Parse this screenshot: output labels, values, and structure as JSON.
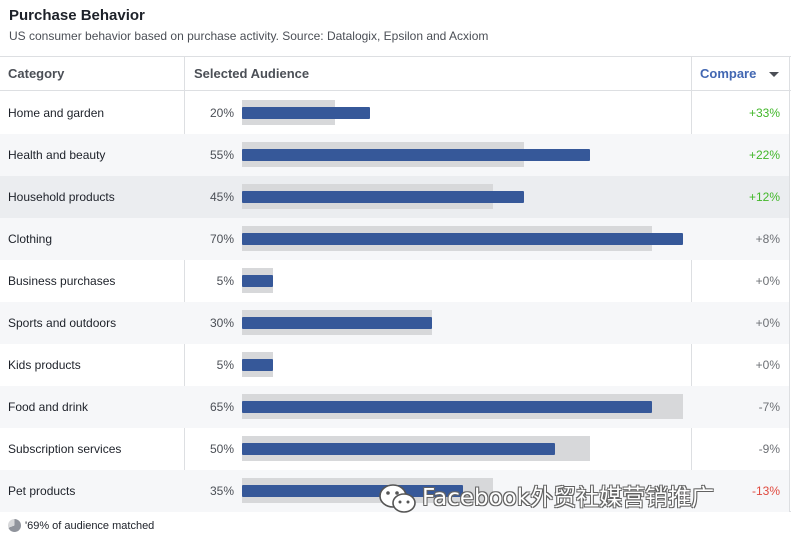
{
  "header": {
    "title": "Purchase Behavior",
    "subtitle": "US consumer behavior based on purchase activity. Source: Datalogix, Epsilon and Acxiom"
  },
  "table": {
    "columns": {
      "category": "Category",
      "audience": "Selected Audience",
      "compare": "Compare"
    },
    "rows": [
      {
        "category": "Home and garden",
        "audience_pct": "20%",
        "audience": 0.29,
        "baseline": 0.21,
        "compare": "+33%",
        "compare_sign": "pos"
      },
      {
        "category": "Health and beauty",
        "audience_pct": "55%",
        "audience": 0.79,
        "baseline": 0.64,
        "compare": "+22%",
        "compare_sign": "pos"
      },
      {
        "category": "Household products",
        "audience_pct": "45%",
        "audience": 0.64,
        "baseline": 0.57,
        "compare": "+12%",
        "compare_sign": "pos"
      },
      {
        "category": "Clothing",
        "audience_pct": "70%",
        "audience": 1.0,
        "baseline": 0.93,
        "compare": "+8%",
        "compare_sign": "neu"
      },
      {
        "category": "Business purchases",
        "audience_pct": "5%",
        "audience": 0.07,
        "baseline": 0.07,
        "compare": "+0%",
        "compare_sign": "neu"
      },
      {
        "category": "Sports and outdoors",
        "audience_pct": "30%",
        "audience": 0.43,
        "baseline": 0.43,
        "compare": "+0%",
        "compare_sign": "neu"
      },
      {
        "category": "Kids products",
        "audience_pct": "5%",
        "audience": 0.07,
        "baseline": 0.07,
        "compare": "+0%",
        "compare_sign": "neu"
      },
      {
        "category": "Food and drink",
        "audience_pct": "65%",
        "audience": 0.93,
        "baseline": 1.0,
        "compare": "-7%",
        "compare_sign": "neu"
      },
      {
        "category": "Subscription services",
        "audience_pct": "50%",
        "audience": 0.71,
        "baseline": 0.79,
        "compare": "-9%",
        "compare_sign": "neu"
      },
      {
        "category": "Pet products",
        "audience_pct": "35%",
        "audience": 0.5,
        "baseline": 0.57,
        "compare": "-13%",
        "compare_sign": "neg"
      }
    ]
  },
  "footer": {
    "text": "'69% of audience matched",
    "matched": 0.69
  },
  "watermark": {
    "text": "Facebook外贸社媒营销推广",
    "icon": "wechat-icon"
  },
  "colors": {
    "bar_audience": "#365899",
    "bar_baseline": "#d7d8da",
    "compare_positive": "#42b72a",
    "compare_negative": "#e04a3f",
    "compare_neutral": "#6d7075",
    "link": "#4267b2"
  }
}
